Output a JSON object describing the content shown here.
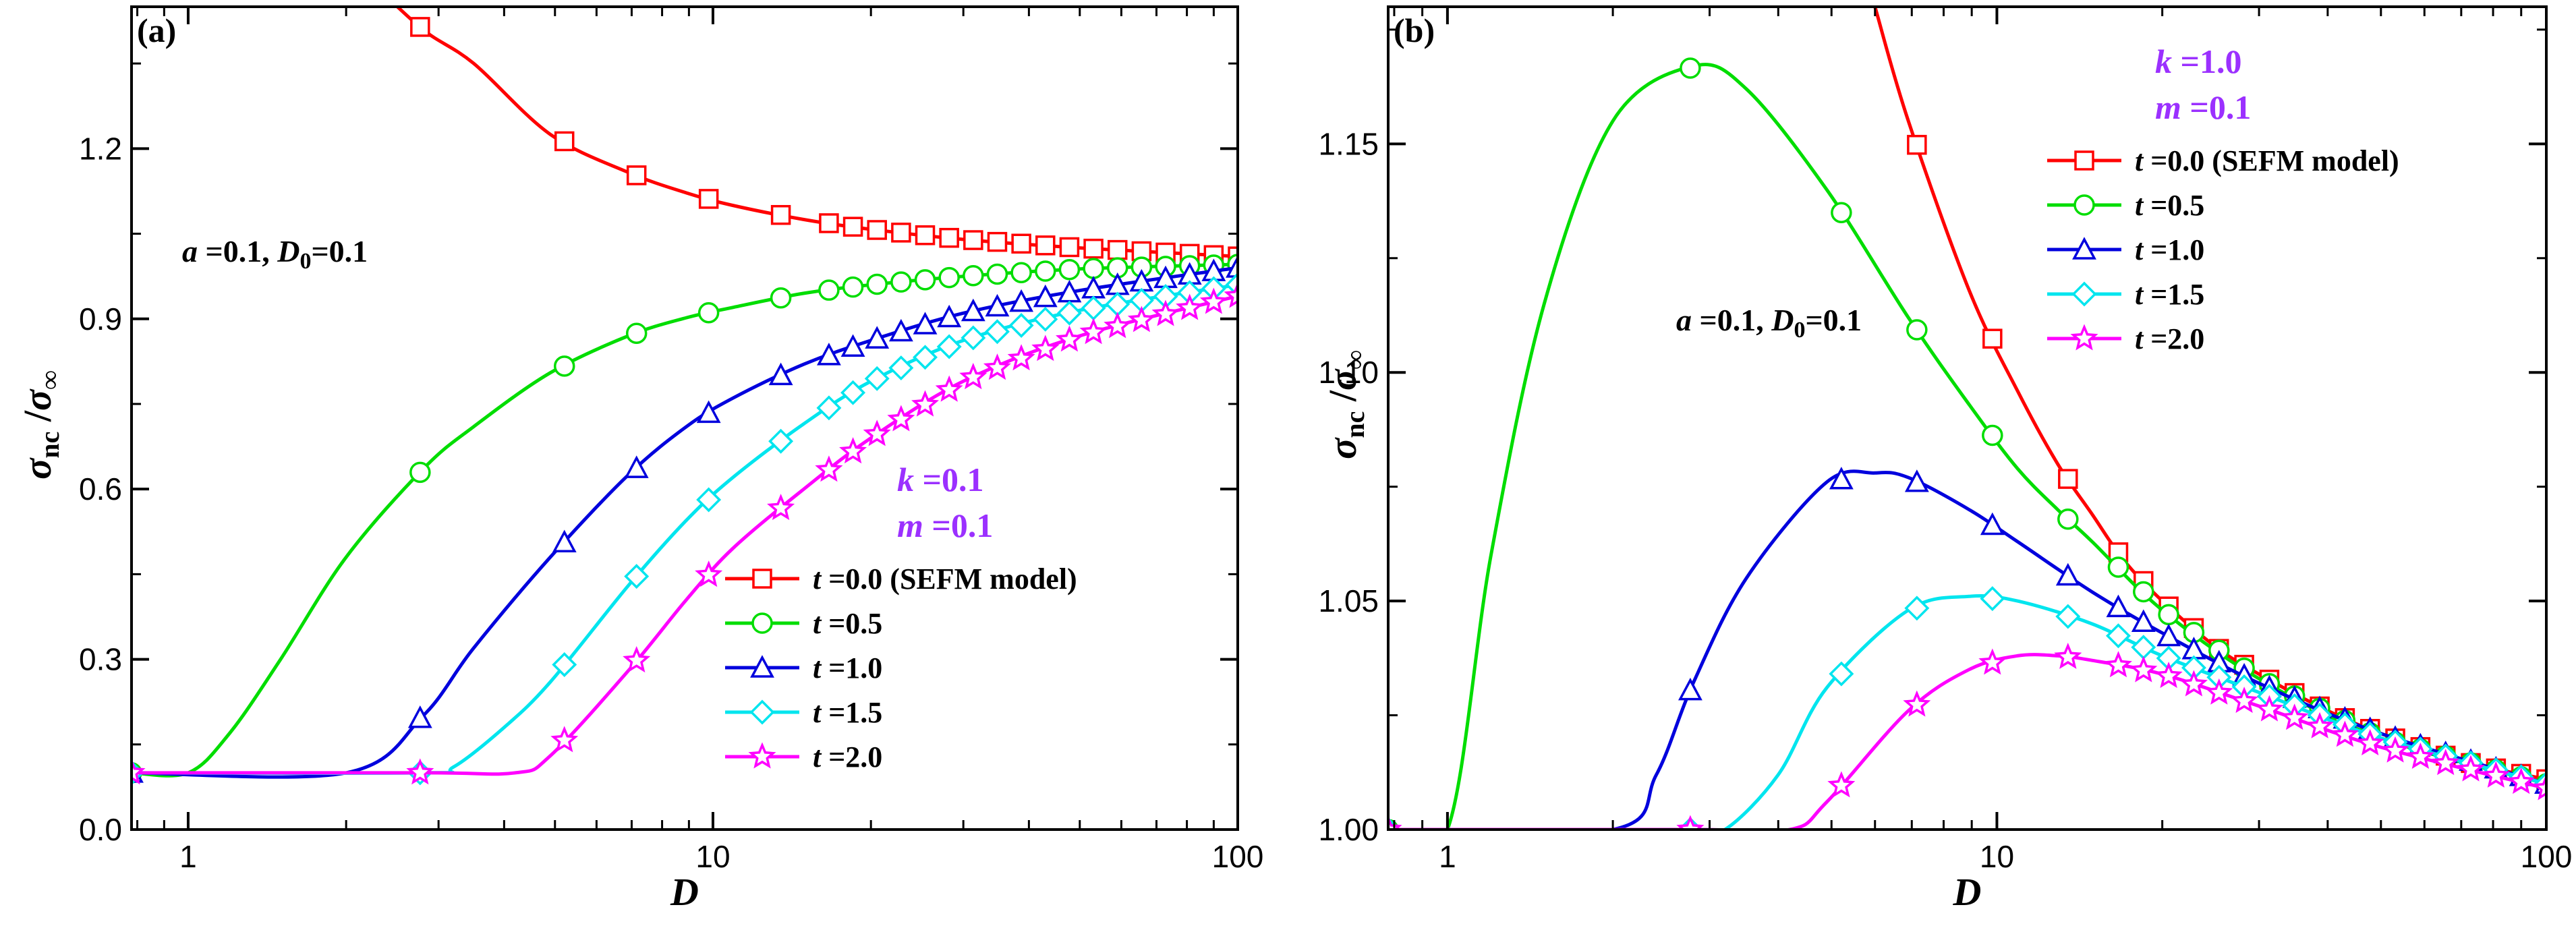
{
  "chart_data": [
    {
      "type": "line",
      "panel_label": "(a)",
      "xlabel": "D",
      "ylabel": {
        "main": "σ",
        "sub": "nc",
        "sep": " /",
        "main2": "σ",
        "sub2": "∞"
      },
      "xscale": "log",
      "xlim": [
        0.78,
        100
      ],
      "ylim": [
        0.0,
        1.45
      ],
      "xticks": [
        {
          "v": 1,
          "label": "1"
        },
        {
          "v": 10,
          "label": "10"
        },
        {
          "v": 100,
          "label": "100"
        }
      ],
      "yticks": [
        {
          "v": 0.0,
          "label": "0.0"
        },
        {
          "v": 0.3,
          "label": "0.3"
        },
        {
          "v": 0.6,
          "label": "0.6"
        },
        {
          "v": 0.9,
          "label": "0.9"
        },
        {
          "v": 1.2,
          "label": "1.2"
        }
      ],
      "annotation": {
        "a_label": "a",
        "a_value": " =0.1, ",
        "d_label": "D",
        "d_sub": "0",
        "d_value": "=0.1"
      },
      "params": [
        {
          "name": "k",
          "value": " =0.1"
        },
        {
          "name": "m",
          "value": " =0.1"
        }
      ],
      "legend_position": "bottom-right",
      "series": [
        {
          "name_var": "t",
          "name_rest": " =0.0 (SEFM model)",
          "color": "#ff0000",
          "marker": "square",
          "x": [
            2.2,
            2.8,
            3.5,
            4.9,
            6.9,
            8.9,
            10.9,
            14.9,
            19.9,
            30,
            50,
            100
          ],
          "y": [
            1.5,
            1.41,
            1.35,
            1.225,
            1.158,
            1.122,
            1.1,
            1.075,
            1.058,
            1.04,
            1.025,
            1.01
          ]
        },
        {
          "name_var": "t",
          "name_rest": " =0.5",
          "color": "#00dd00",
          "marker": "circle",
          "x": [
            0.78,
            1.0,
            1.2,
            1.5,
            2.0,
            2.8,
            3.5,
            4.9,
            6.9,
            8.9,
            10.9,
            14.9,
            20,
            30,
            50,
            100
          ],
          "y": [
            0.1,
            0.1,
            0.17,
            0.3,
            0.48,
            0.635,
            0.71,
            0.805,
            0.87,
            0.902,
            0.92,
            0.945,
            0.96,
            0.975,
            0.988,
            0.996
          ]
        },
        {
          "name_var": "t",
          "name_rest": " =1.0",
          "color": "#0000dd",
          "marker": "triangle",
          "x": [
            0.78,
            2.0,
            2.8,
            3.5,
            4.9,
            6.9,
            8.9,
            10.9,
            14.9,
            20,
            30,
            50,
            100
          ],
          "y": [
            0.1,
            0.1,
            0.2,
            0.32,
            0.48,
            0.625,
            0.71,
            0.76,
            0.82,
            0.862,
            0.91,
            0.95,
            0.99
          ]
        },
        {
          "name_var": "t",
          "name_rest": " =1.5",
          "color": "#00e5ee",
          "marker": "diamond",
          "x": [
            0.78,
            2.8,
            3.2,
            4.0,
            4.9,
            6.9,
            8.9,
            10.9,
            14.9,
            20,
            30,
            50,
            100
          ],
          "y": [
            0.1,
            0.1,
            0.11,
            0.18,
            0.26,
            0.43,
            0.545,
            0.62,
            0.715,
            0.79,
            0.862,
            0.915,
            0.96
          ]
        },
        {
          "name_var": "t",
          "name_rest": " =2.0",
          "color": "#ff00ff",
          "marker": "star",
          "x": [
            0.78,
            2.8,
            4.2,
            4.9,
            6.9,
            8.9,
            10.9,
            14.9,
            20,
            30,
            50,
            100
          ],
          "y": [
            0.1,
            0.1,
            0.1,
            0.13,
            0.28,
            0.405,
            0.495,
            0.6,
            0.69,
            0.79,
            0.87,
            0.94
          ]
        }
      ]
    },
    {
      "type": "line",
      "panel_label": "(b)",
      "xlabel": "D",
      "ylabel": {
        "main": "σ",
        "sub": "nc",
        "sep": " /",
        "main2": "σ",
        "sub2": "∞"
      },
      "xscale": "log",
      "xlim": [
        0.78,
        100
      ],
      "ylim": [
        1.0,
        1.18
      ],
      "xticks": [
        {
          "v": 1,
          "label": "1"
        },
        {
          "v": 10,
          "label": "10"
        },
        {
          "v": 100,
          "label": "100"
        }
      ],
      "yticks": [
        {
          "v": 1.0,
          "label": "1.00"
        },
        {
          "v": 1.05,
          "label": "1.05"
        },
        {
          "v": 1.1,
          "label": "1.10"
        },
        {
          "v": 1.15,
          "label": "1.15"
        }
      ],
      "annotation": {
        "a_label": "a",
        "a_value": " =0.1, ",
        "d_label": "D",
        "d_sub": "0",
        "d_value": "=0.1"
      },
      "params": [
        {
          "name": "k",
          "value": " =1.0"
        },
        {
          "name": "m",
          "value": " =0.1"
        }
      ],
      "legend_position": "top-right",
      "series": [
        {
          "name_var": "t",
          "name_rest": " =0.0 (SEFM model)",
          "color": "#ff0000",
          "marker": "square",
          "x": [
            6.0,
            6.9,
            8.9,
            10.9,
            12.9,
            14.9,
            17,
            20,
            25,
            30,
            40,
            50,
            70,
            100
          ],
          "y": [
            1.18,
            1.155,
            1.118,
            1.096,
            1.08,
            1.069,
            1.059,
            1.05,
            1.04,
            1.034,
            1.026,
            1.021,
            1.015,
            1.011
          ]
        },
        {
          "name_var": "t",
          "name_rest": " =0.5",
          "color": "#00dd00",
          "marker": "circle",
          "x": [
            0.78,
            1.0,
            1.2,
            1.5,
            2.0,
            2.8,
            3.5,
            4.9,
            6.9,
            8.9,
            10.9,
            12.9,
            14.9,
            20,
            30,
            50,
            100
          ],
          "y": [
            1.0,
            1.0,
            1.06,
            1.115,
            1.155,
            1.167,
            1.162,
            1.14,
            1.112,
            1.093,
            1.079,
            1.07,
            1.063,
            1.048,
            1.033,
            1.02,
            1.01
          ]
        },
        {
          "name_var": "t",
          "name_rest": " =1.0",
          "color": "#0000dd",
          "marker": "triangle",
          "x": [
            0.78,
            2.0,
            2.4,
            2.8,
            3.5,
            4.9,
            6.0,
            6.9,
            8.9,
            10.9,
            14.9,
            20,
            30,
            50,
            100
          ],
          "y": [
            1.0,
            1.0,
            1.012,
            1.032,
            1.055,
            1.076,
            1.078,
            1.077,
            1.07,
            1.063,
            1.052,
            1.043,
            1.032,
            1.021,
            1.01
          ]
        },
        {
          "name_var": "t",
          "name_rest": " =1.5",
          "color": "#00e5ee",
          "marker": "diamond",
          "x": [
            0.78,
            2.8,
            3.2,
            4.0,
            4.9,
            6.9,
            8.9,
            10.9,
            14.9,
            20,
            30,
            50,
            100
          ],
          "y": [
            1.0,
            1.0,
            1.0,
            1.012,
            1.031,
            1.048,
            1.051,
            1.05,
            1.045,
            1.038,
            1.03,
            1.02,
            1.01
          ]
        },
        {
          "name_var": "t",
          "name_rest": " =2.0",
          "color": "#ff00ff",
          "marker": "star",
          "x": [
            0.78,
            2.8,
            4.2,
            4.9,
            6.9,
            8.9,
            10.9,
            12.9,
            14.9,
            20,
            30,
            50,
            100
          ],
          "y": [
            1.0,
            1.0,
            1.0,
            1.006,
            1.026,
            1.035,
            1.038,
            1.038,
            1.037,
            1.034,
            1.027,
            1.018,
            1.009
          ]
        }
      ]
    }
  ]
}
